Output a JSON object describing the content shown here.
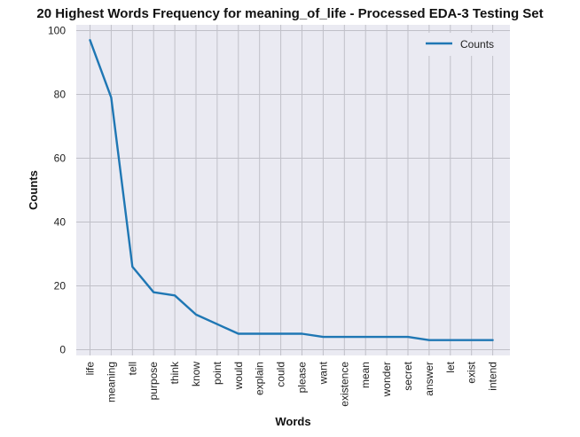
{
  "chart_data": {
    "type": "line",
    "title": "20 Highest Words Frequency for meaning_of_life - Processed EDA-3 Testing Set",
    "xlabel": "Words",
    "ylabel": "Counts",
    "categories": [
      "life",
      "meaning",
      "tell",
      "purpose",
      "think",
      "know",
      "point",
      "would",
      "explain",
      "could",
      "please",
      "want",
      "existence",
      "mean",
      "wonder",
      "secret",
      "answer",
      "let",
      "exist",
      "intend"
    ],
    "series": [
      {
        "name": "Counts",
        "values": [
          97,
          79,
          26,
          18,
          17,
          11,
          8,
          5,
          5,
          5,
          5,
          4,
          4,
          4,
          4,
          4,
          3,
          3,
          3,
          3
        ]
      }
    ],
    "ylim": [
      -1.8,
      101.8
    ],
    "yticks": [
      0,
      20,
      40,
      60,
      80,
      100
    ],
    "grid": true,
    "legend_position": "top-right",
    "colors": {
      "line": "#1f77b4",
      "plot_bg": "#eaeaf2",
      "grid": "#c0c0c8"
    }
  }
}
